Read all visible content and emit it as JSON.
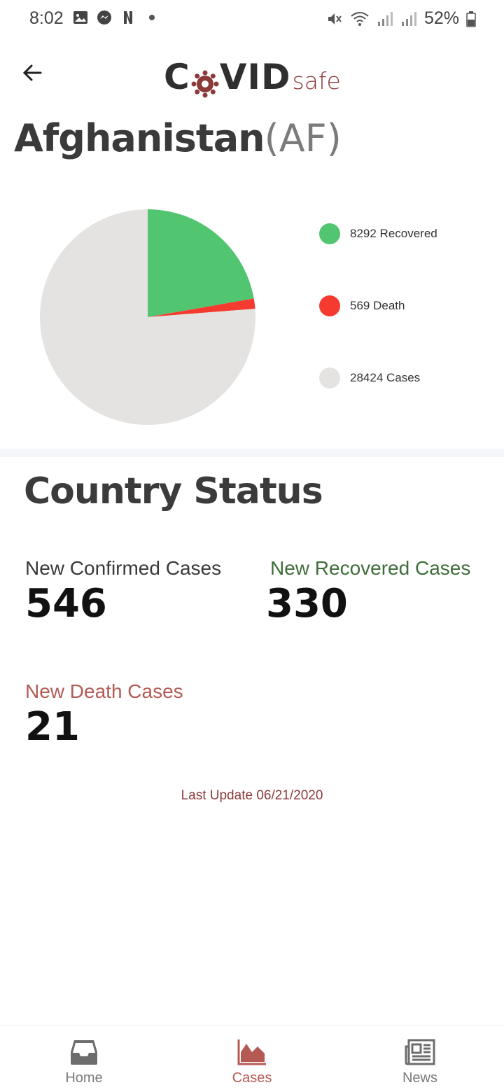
{
  "status_bar": {
    "time": "8:02",
    "battery": "52%"
  },
  "app": {
    "logo_main_left": "C",
    "logo_main_right": "VID",
    "logo_safe": "safe"
  },
  "country": {
    "name": "Afghanistan",
    "code": "(AF)"
  },
  "chart_data": {
    "type": "pie",
    "slices": [
      {
        "label": "Recovered",
        "value": 8292,
        "color": "#52c571"
      },
      {
        "label": "Death",
        "value": 569,
        "color": "#f53b30"
      },
      {
        "label": "Cases",
        "value": 28424,
        "color": "#e4e3e1"
      }
    ],
    "legend": [
      {
        "text": "8292 Recovered",
        "color": "#52c571"
      },
      {
        "text": "569 Death",
        "color": "#f53b30"
      },
      {
        "text": "28424 Cases",
        "color": "#e4e3e1"
      }
    ],
    "legend_position": "right"
  },
  "status": {
    "title": "Country Status",
    "new_confirmed_label": "New Confirmed Cases",
    "new_confirmed_value": "546",
    "new_recovered_label": "New Recovered Cases",
    "new_recovered_value": "330",
    "new_death_label": "New Death Cases",
    "new_death_value": "21",
    "last_update": "Last Update 06/21/2020"
  },
  "nav": {
    "home": "Home",
    "cases": "Cases",
    "news": "News",
    "active": "cases"
  },
  "colors": {
    "accent": "#b45a52",
    "recovered_green": "#3f6d3a",
    "death_red": "#b35b55"
  }
}
